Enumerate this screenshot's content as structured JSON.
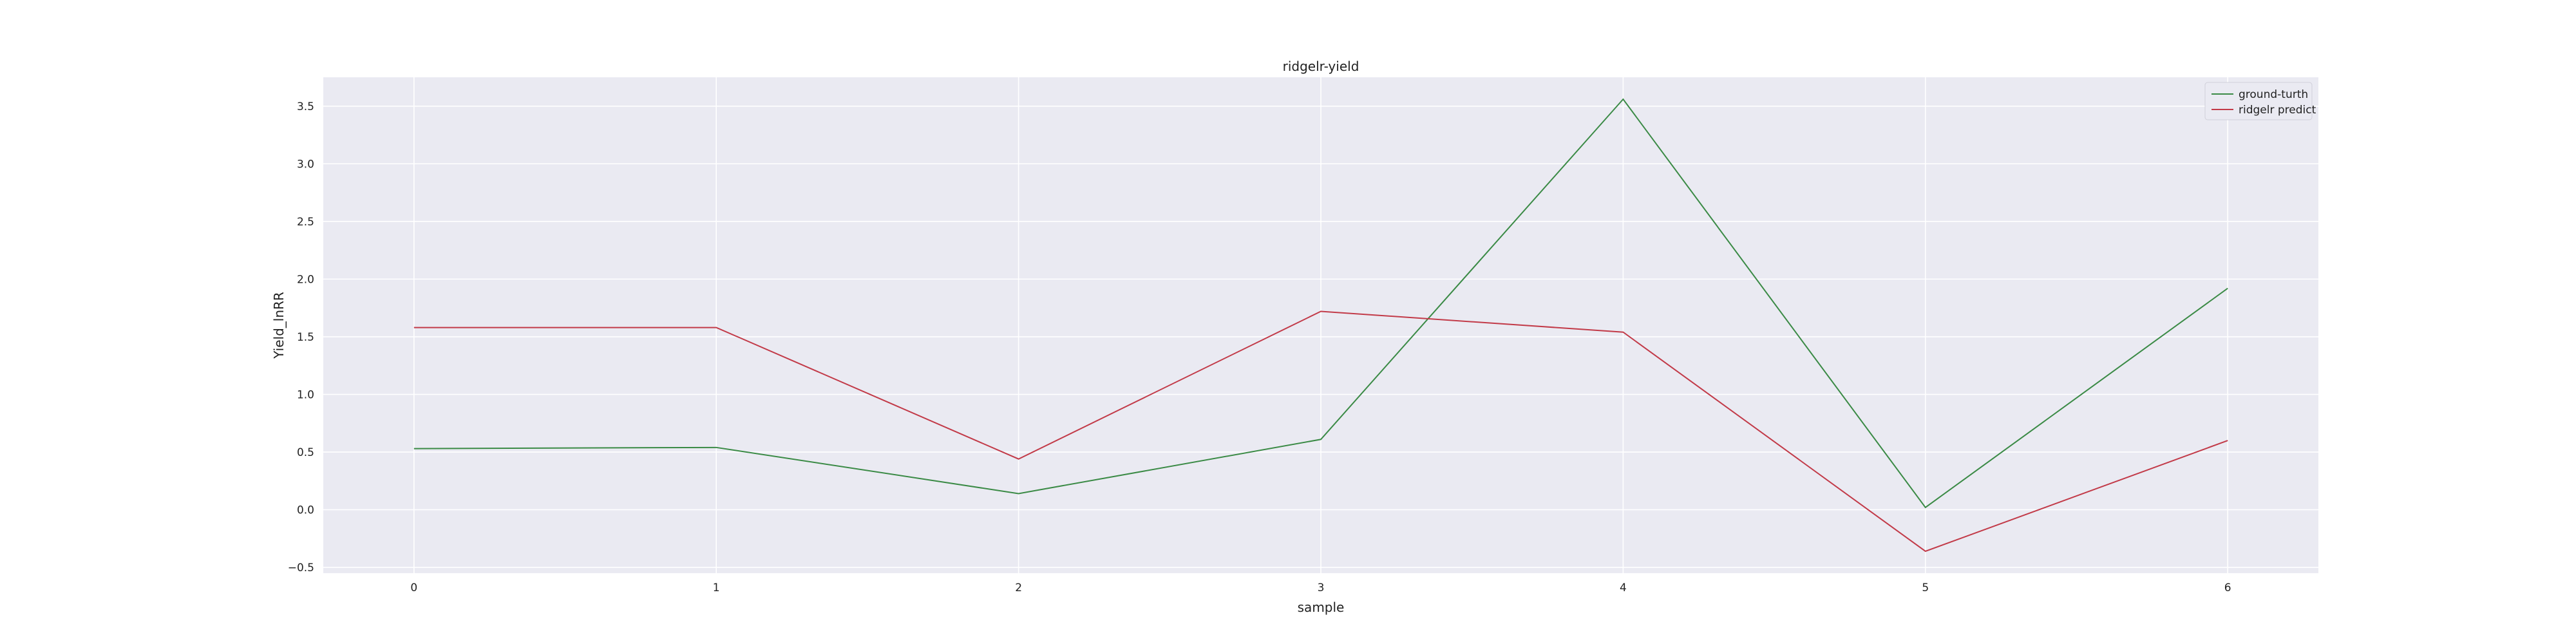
{
  "chart_data": {
    "type": "line",
    "title": "ridgelr-yield",
    "xlabel": "sample",
    "ylabel": "Yield_lnRR",
    "x": [
      0,
      1,
      2,
      3,
      4,
      5,
      6
    ],
    "xlim": [
      -0.3,
      6.3
    ],
    "ylim": [
      -0.55,
      3.75
    ],
    "xticks": [
      0,
      1,
      2,
      3,
      4,
      5,
      6
    ],
    "yticks": [
      -0.5,
      0.0,
      0.5,
      1.0,
      1.5,
      2.0,
      2.5,
      3.0,
      3.5
    ],
    "ytick_labels": [
      "−0.5",
      "0.0",
      "0.5",
      "1.0",
      "1.5",
      "2.0",
      "2.5",
      "3.0",
      "3.5"
    ],
    "grid": true,
    "legend_position": "top-right",
    "series": [
      {
        "name": "ground-turth",
        "color": "#3a8a45",
        "values": [
          0.53,
          0.54,
          0.14,
          0.61,
          3.56,
          0.02,
          1.92
        ]
      },
      {
        "name": "ridgelr predict",
        "color": "#c23a48",
        "values": [
          1.58,
          1.58,
          0.44,
          1.72,
          1.54,
          -0.36,
          0.6
        ]
      }
    ],
    "plot_background": "#eaeaf2",
    "grid_color": "#ffffff"
  }
}
